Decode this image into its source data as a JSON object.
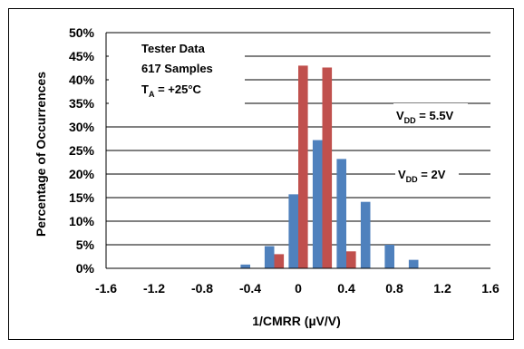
{
  "chart_data": {
    "type": "bar",
    "title": "",
    "xlabel": "1/CMRR (µV/V)",
    "ylabel": "Percentage of Occurrences",
    "xlim": [
      -1.6,
      1.6
    ],
    "ylim": [
      0,
      50
    ],
    "x_ticks": [
      "-1.6",
      "-1.2",
      "-0.8",
      "-0.4",
      "0",
      "0.4",
      "0.8",
      "1.2",
      "1.6"
    ],
    "y_ticks": [
      "0%",
      "5%",
      "10%",
      "15%",
      "20%",
      "25%",
      "30%",
      "35%",
      "40%",
      "45%",
      "50%"
    ],
    "grid": "horizontal",
    "legend": "none",
    "annotation": {
      "lines": [
        "Tester Data",
        "617 Samples"
      ],
      "temp": {
        "main": "T",
        "sub": "A",
        "rest": " = +25°C"
      }
    },
    "series": [
      {
        "label": {
          "main": "V",
          "sub": "DD",
          "rest": " = 2V"
        },
        "color": "#4f81bd",
        "x": [
          -1.6,
          -1.4,
          -1.2,
          -1.0,
          -0.8,
          -0.6,
          -0.4,
          -0.2,
          0.0,
          0.2,
          0.4,
          0.6,
          0.8,
          1.0,
          1.2,
          1.4,
          1.6
        ],
        "values": [
          0,
          0,
          0,
          0,
          0,
          0,
          0.8,
          4.7,
          15.7,
          27.2,
          23.2,
          14.1,
          5.0,
          1.8,
          0,
          0,
          0
        ]
      },
      {
        "label": {
          "main": "V",
          "sub": "DD",
          "rest": " = 5.5V"
        },
        "color": "#c0504d",
        "x": [
          -1.6,
          -1.4,
          -1.2,
          -1.0,
          -0.8,
          -0.6,
          -0.4,
          -0.2,
          0.0,
          0.2,
          0.4,
          0.6,
          0.8,
          1.0,
          1.2,
          1.4,
          1.6
        ],
        "values": [
          0,
          0,
          0,
          0,
          0,
          0,
          0,
          3.0,
          43.0,
          42.6,
          3.6,
          0,
          0,
          0,
          0,
          0,
          0
        ]
      }
    ]
  }
}
